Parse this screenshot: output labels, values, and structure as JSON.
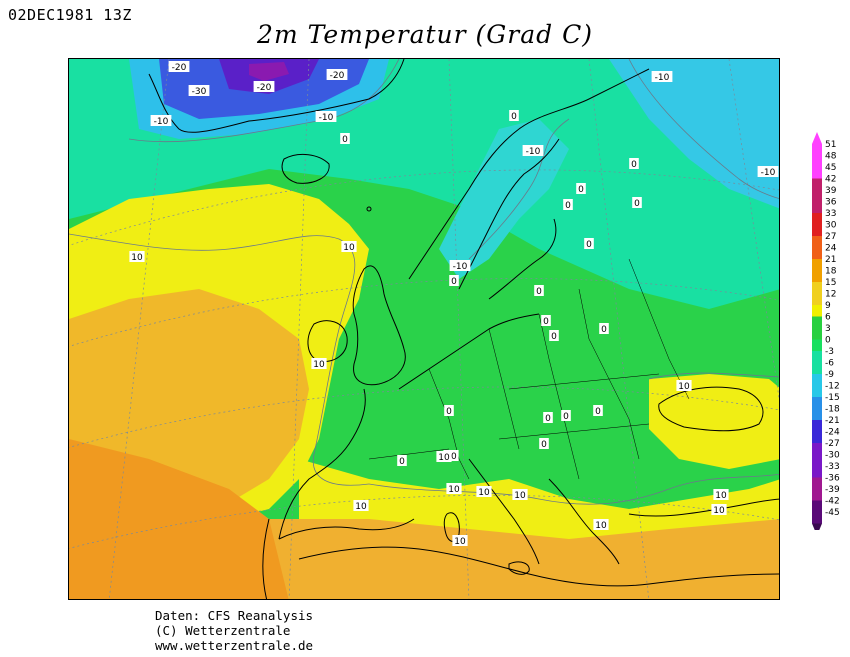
{
  "header": {
    "timestamp": "02DEC1981 13Z",
    "title": "2m Temperatur (Grad C)"
  },
  "credits": {
    "line1": "Daten: CFS Reanalysis",
    "line2": "(C) Wetterzentrale",
    "line3": "www.wetterzentrale.de"
  },
  "legend": {
    "levels": [
      "51",
      "48",
      "45",
      "42",
      "39",
      "36",
      "33",
      "30",
      "27",
      "24",
      "21",
      "18",
      "15",
      "12",
      "9",
      "6",
      "3",
      "0",
      "-3",
      "-6",
      "-9",
      "-12",
      "-15",
      "-18",
      "-21",
      "-24",
      "-27",
      "-30",
      "-33",
      "-36",
      "-39",
      "-42",
      "-45"
    ],
    "colors": {
      "very_cold": "#5a0a78",
      "cold": "#3a28d8",
      "cool": "#28c8e8",
      "near_zero": "#18e0a0",
      "mild": "#28d040",
      "warm": "#f0f000",
      "hot": "#f0a000",
      "very_hot": "#e02020",
      "extreme": "#ff40ff"
    }
  },
  "map": {
    "contour_labels": [
      {
        "text": "-20"
      },
      {
        "text": "-30"
      },
      {
        "text": "-20"
      },
      {
        "text": "-20"
      },
      {
        "text": "-10"
      },
      {
        "text": "-10"
      },
      {
        "text": "0"
      },
      {
        "text": "-10"
      },
      {
        "text": "0"
      },
      {
        "text": "-10"
      },
      {
        "text": "-10"
      },
      {
        "text": "0"
      },
      {
        "text": "0"
      },
      {
        "text": "0"
      },
      {
        "text": "0"
      },
      {
        "text": "10"
      },
      {
        "text": "10"
      },
      {
        "text": "-10"
      },
      {
        "text": "0"
      },
      {
        "text": "0"
      },
      {
        "text": "0"
      },
      {
        "text": "0"
      },
      {
        "text": "0"
      },
      {
        "text": "10"
      },
      {
        "text": "0"
      },
      {
        "text": "10"
      },
      {
        "text": "0"
      },
      {
        "text": "0"
      },
      {
        "text": "0"
      },
      {
        "text": "10"
      },
      {
        "text": "10"
      },
      {
        "text": "10"
      },
      {
        "text": "10"
      },
      {
        "text": "10"
      },
      {
        "text": "10"
      },
      {
        "text": "10"
      },
      {
        "text": "10"
      },
      {
        "text": "10"
      },
      {
        "text": "10"
      },
      {
        "text": "0"
      },
      {
        "text": "0"
      },
      {
        "text": "0"
      }
    ]
  }
}
